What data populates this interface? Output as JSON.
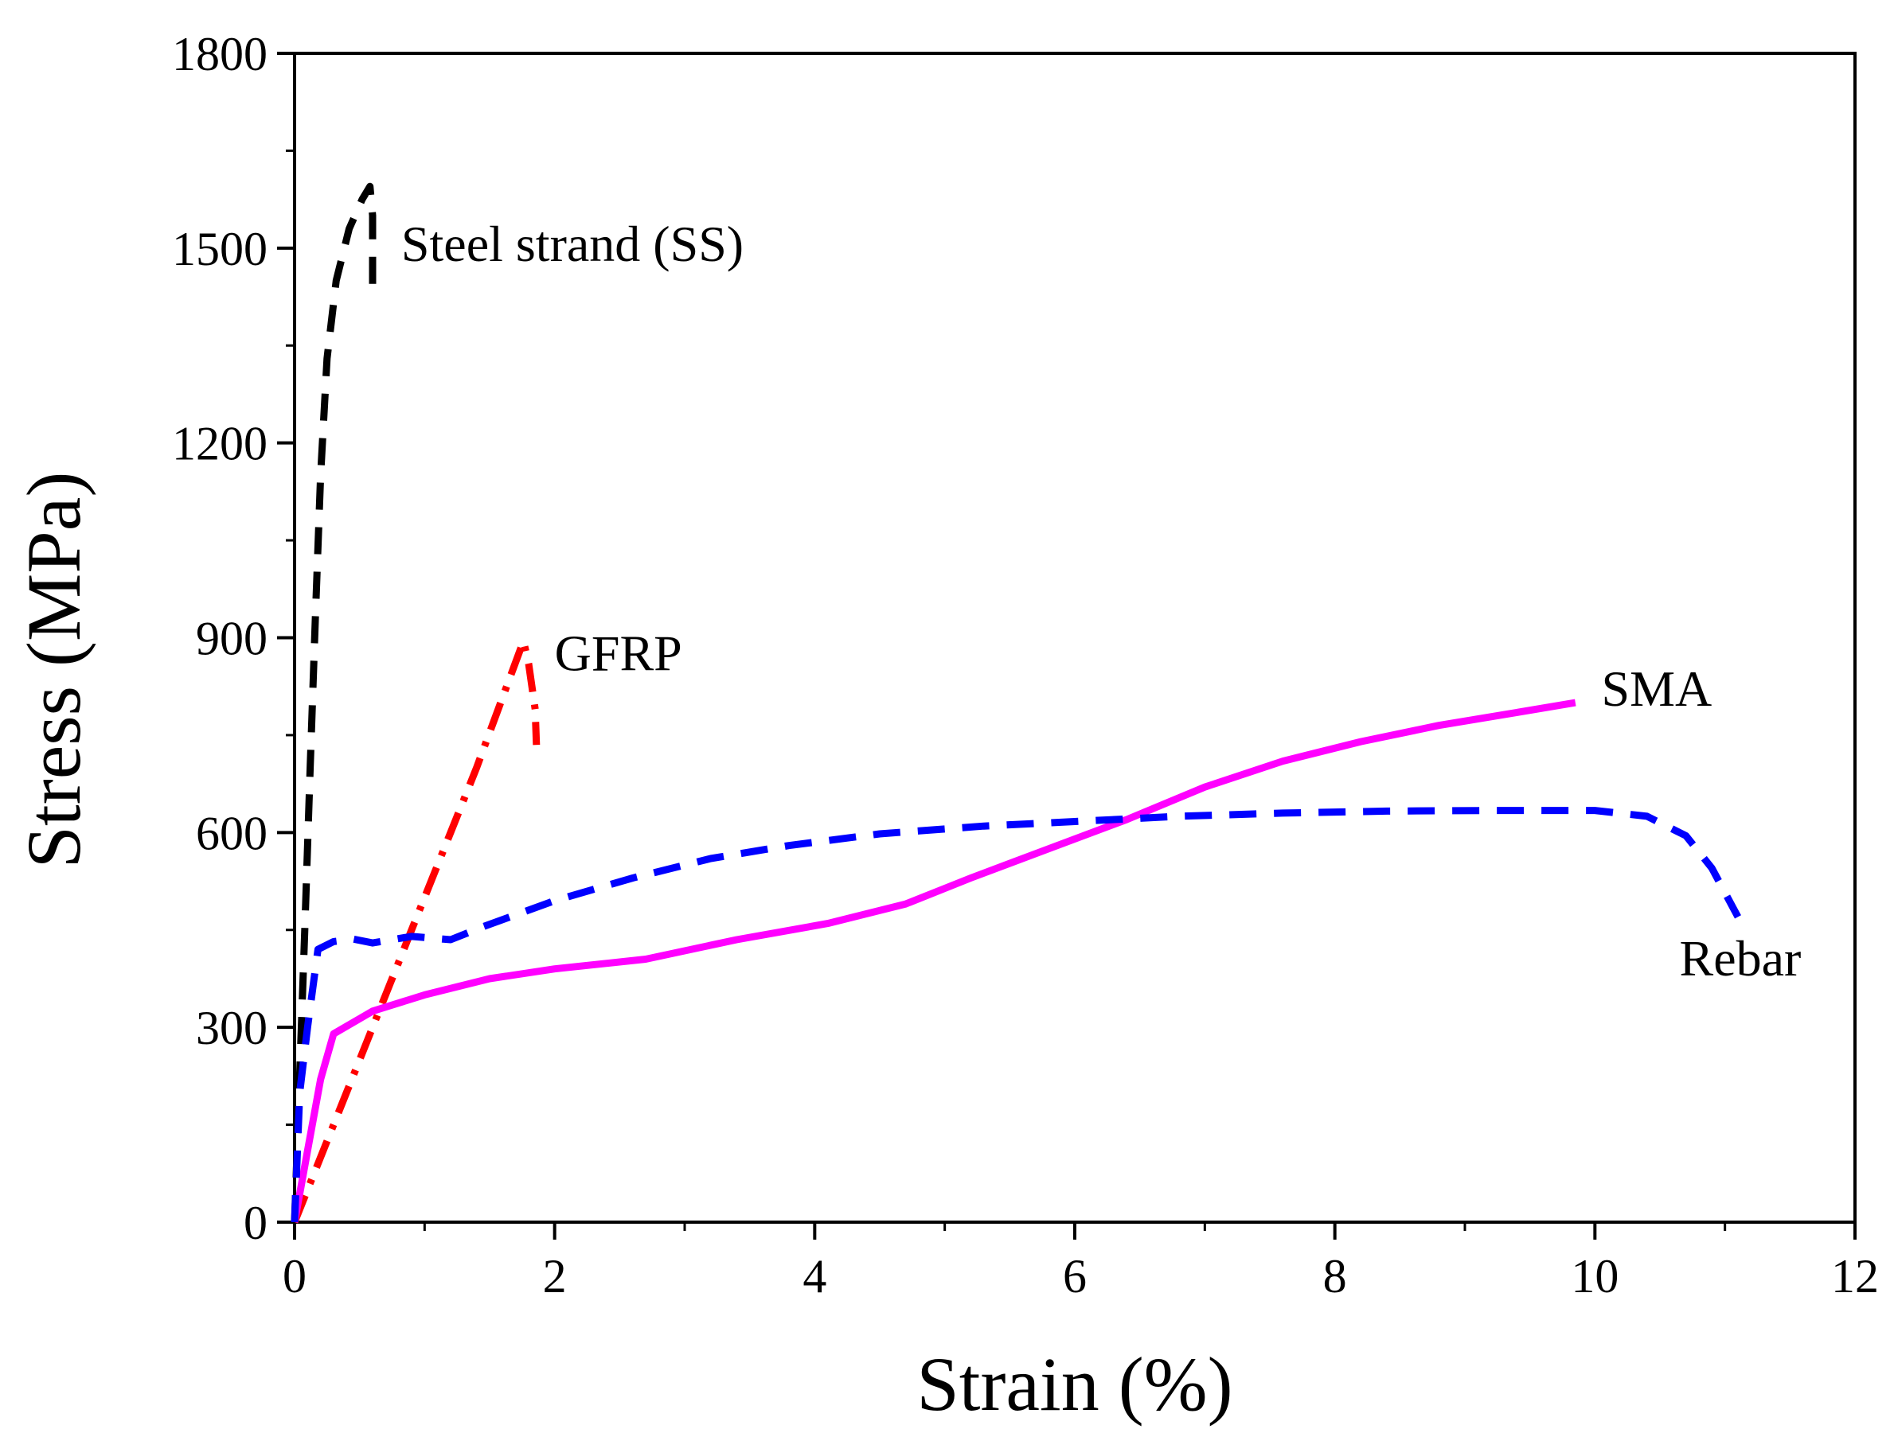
{
  "chart_data": {
    "type": "line",
    "xlabel": "Strain (%)",
    "ylabel": "Stress (MPa)",
    "xlim": [
      0,
      12
    ],
    "ylim": [
      0,
      1800
    ],
    "xticks": [
      0,
      2,
      4,
      6,
      8,
      10,
      12
    ],
    "yticks": [
      0,
      300,
      600,
      900,
      1200,
      1500,
      1800
    ],
    "grid": false,
    "series": [
      {
        "name": "Steel strand (SS)",
        "color": "#000000",
        "dash": "dashed",
        "label_at": [
          0.82,
          1480
        ],
        "points": [
          [
            0,
            0
          ],
          [
            0.04,
            230
          ],
          [
            0.08,
            460
          ],
          [
            0.12,
            700
          ],
          [
            0.16,
            930
          ],
          [
            0.2,
            1150
          ],
          [
            0.25,
            1330
          ],
          [
            0.32,
            1450
          ],
          [
            0.42,
            1530
          ],
          [
            0.52,
            1575
          ],
          [
            0.58,
            1595
          ],
          [
            0.6,
            1550
          ],
          [
            0.6,
            1430
          ]
        ]
      },
      {
        "name": "GFRP",
        "color": "#ff0000",
        "dash": "dashdot",
        "label_at": [
          2.0,
          850
        ],
        "points": [
          [
            0,
            0
          ],
          [
            0.5,
            250
          ],
          [
            1.0,
            500
          ],
          [
            1.4,
            700
          ],
          [
            1.76,
            895
          ],
          [
            1.8,
            860
          ],
          [
            1.85,
            790
          ],
          [
            1.86,
            735
          ]
        ]
      },
      {
        "name": "SMA",
        "color": "#ff00ff",
        "dash": "solid",
        "label_at": [
          10.05,
          795
        ],
        "points": [
          [
            0,
            0
          ],
          [
            0.1,
            110
          ],
          [
            0.2,
            220
          ],
          [
            0.3,
            290
          ],
          [
            0.6,
            325
          ],
          [
            1,
            350
          ],
          [
            1.5,
            375
          ],
          [
            2,
            390
          ],
          [
            2.7,
            405
          ],
          [
            3.4,
            435
          ],
          [
            4.1,
            460
          ],
          [
            4.7,
            490
          ],
          [
            5.2,
            530
          ],
          [
            5.8,
            575
          ],
          [
            6.4,
            620
          ],
          [
            7,
            670
          ],
          [
            7.6,
            710
          ],
          [
            8.2,
            740
          ],
          [
            8.8,
            765
          ],
          [
            9.4,
            785
          ],
          [
            9.85,
            800
          ]
        ]
      },
      {
        "name": "Rebar",
        "color": "#0000ff",
        "dash": "dashed",
        "label_at": [
          10.65,
          380
        ],
        "points": [
          [
            0,
            0
          ],
          [
            0.04,
            200
          ],
          [
            0.1,
            300
          ],
          [
            0.18,
            420
          ],
          [
            0.3,
            432
          ],
          [
            0.45,
            436
          ],
          [
            0.6,
            430
          ],
          [
            0.9,
            440
          ],
          [
            1.2,
            435
          ],
          [
            1.45,
            455
          ],
          [
            2,
            495
          ],
          [
            2.6,
            530
          ],
          [
            3.2,
            560
          ],
          [
            3.8,
            580
          ],
          [
            4.5,
            598
          ],
          [
            5.3,
            610
          ],
          [
            6,
            617
          ],
          [
            6.8,
            625
          ],
          [
            7.6,
            630
          ],
          [
            8.4,
            633
          ],
          [
            9.2,
            634
          ],
          [
            10,
            634
          ],
          [
            10.4,
            625
          ],
          [
            10.7,
            595
          ],
          [
            10.9,
            545
          ],
          [
            11.1,
            470
          ]
        ]
      }
    ]
  }
}
